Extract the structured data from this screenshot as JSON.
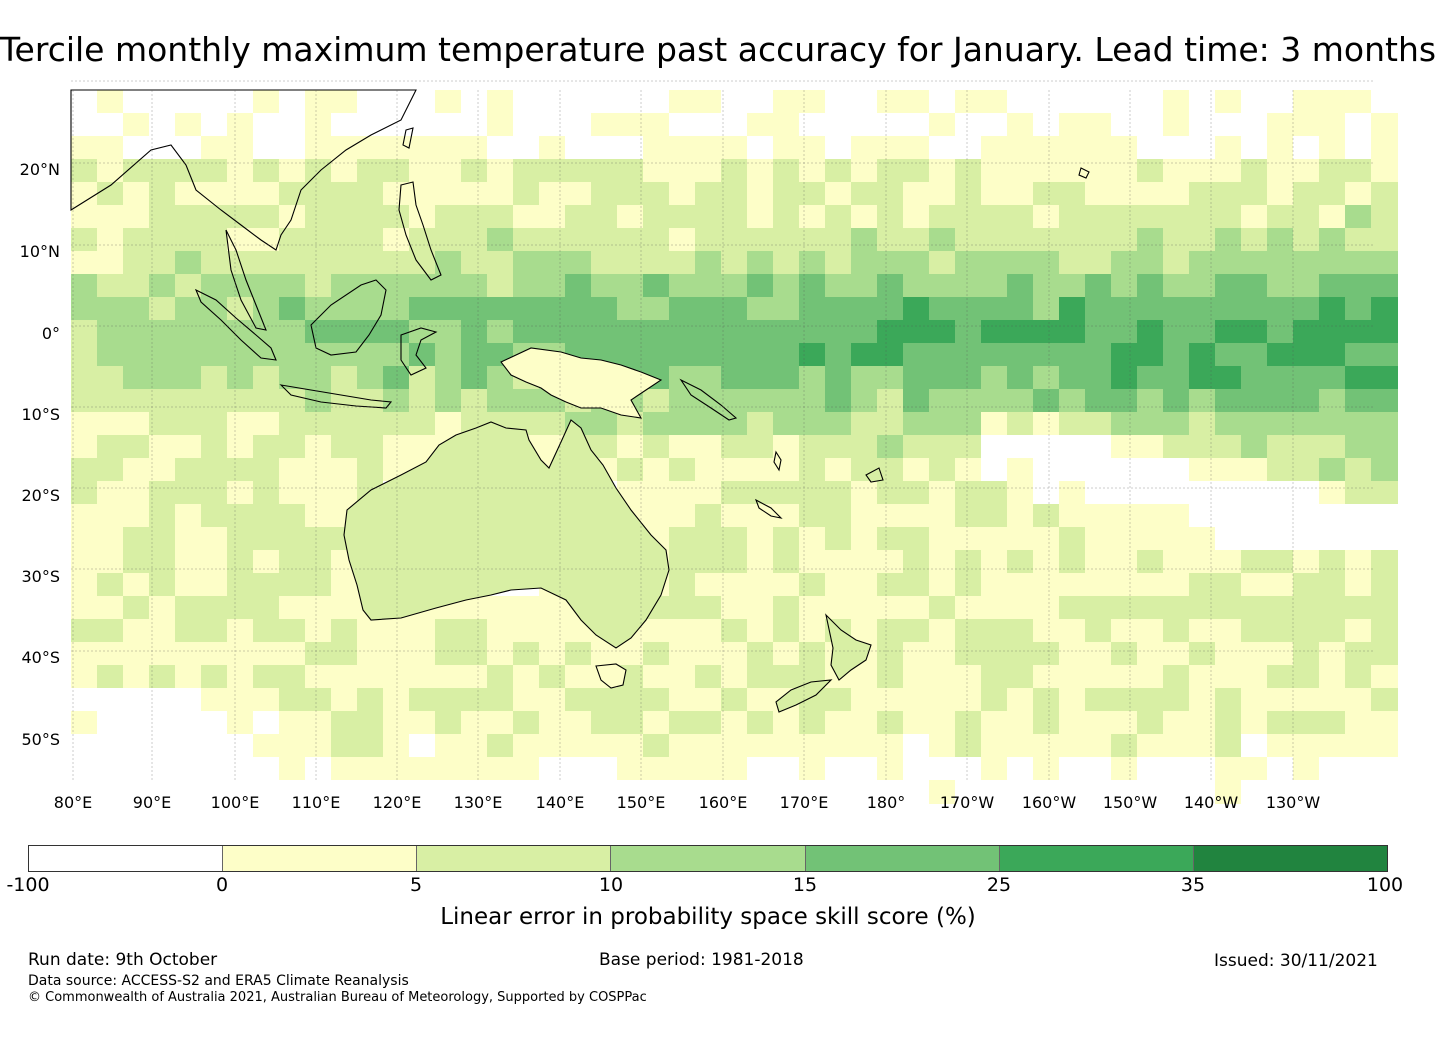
{
  "title": "Tercile monthly maximum temperature past accuracy for January. Lead time: 3 months",
  "map": {
    "lat_labels": [
      "20°N",
      "10°N",
      "0°",
      "10°S",
      "20°S",
      "30°S",
      "40°S",
      "50°S"
    ],
    "lon_labels": [
      "80°E",
      "90°E",
      "100°E",
      "110°E",
      "120°E",
      "130°E",
      "140°E",
      "150°E",
      "160°E",
      "170°E",
      "180°",
      "170°W",
      "160°W",
      "150°W",
      "140°W",
      "130°W"
    ]
  },
  "colorbar": {
    "ticks": [
      "-100",
      "0",
      "5",
      "10",
      "15",
      "25",
      "35",
      "100"
    ],
    "colors": [
      "#ffffff",
      "#fdfec8",
      "#d8efa4",
      "#a8dc8e",
      "#72c276",
      "#3ba859",
      "#21843f"
    ],
    "label": "Linear error in probability space skill score (%)"
  },
  "footer": {
    "run_date": "Run date: 9th October",
    "base_period": "Base period: 1981-2018",
    "issued": "Issued: 30/11/2021",
    "data_source": "Data source: ACCESS-S2 and ERA5 Climate Reanalysis",
    "copyright": "© Commonwealth of Australia 2021, Australian Bureau of Meteorology, Supported by COSPPac"
  }
}
